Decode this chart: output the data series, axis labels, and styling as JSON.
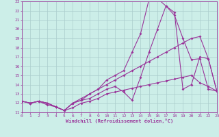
{
  "bg_color": "#cceee8",
  "grid_color": "#aacccc",
  "line_color": "#993399",
  "xlabel": "Windchill (Refroidissement éolien,°C)",
  "xmin": 0,
  "xmax": 23,
  "ymin": 11,
  "ymax": 23,
  "series": [
    {
      "x": [
        0,
        1,
        2,
        3,
        4,
        5,
        6,
        7,
        8,
        9,
        10,
        11,
        12,
        13,
        14,
        15,
        16,
        17,
        18,
        19,
        20,
        21,
        22,
        23
      ],
      "y": [
        12.2,
        12.0,
        12.2,
        11.8,
        11.6,
        11.2,
        11.5,
        12.0,
        12.2,
        12.5,
        13.0,
        13.2,
        13.4,
        13.6,
        13.8,
        14.0,
        14.2,
        14.4,
        14.6,
        14.8,
        15.0,
        14.2,
        13.8,
        13.3
      ]
    },
    {
      "x": [
        0,
        1,
        2,
        3,
        4,
        5,
        6,
        7,
        8,
        9,
        10,
        11,
        12,
        13,
        14,
        15,
        16,
        17,
        18,
        19,
        20,
        21,
        22,
        23
      ],
      "y": [
        12.2,
        12.0,
        12.2,
        12.0,
        11.6,
        11.2,
        12.0,
        12.5,
        13.0,
        13.5,
        14.0,
        14.5,
        15.0,
        15.5,
        16.0,
        16.5,
        17.0,
        17.5,
        18.0,
        18.5,
        19.0,
        19.2,
        16.8,
        13.3
      ]
    },
    {
      "x": [
        0,
        1,
        2,
        3,
        4,
        5,
        6,
        7,
        8,
        9,
        10,
        11,
        12,
        13,
        14,
        15,
        16,
        17,
        18,
        19,
        20,
        21,
        22,
        23
      ],
      "y": [
        12.2,
        12.0,
        12.2,
        12.0,
        11.6,
        11.2,
        12.0,
        12.3,
        13.0,
        13.5,
        14.5,
        15.0,
        15.5,
        17.5,
        19.5,
        23.2,
        23.3,
        22.5,
        21.5,
        19.0,
        16.7,
        16.8,
        13.5,
        13.3
      ]
    },
    {
      "x": [
        0,
        1,
        2,
        3,
        4,
        5,
        6,
        7,
        8,
        9,
        10,
        11,
        12,
        13,
        14,
        15,
        16,
        17,
        18,
        19,
        20,
        21,
        22,
        23
      ],
      "y": [
        12.2,
        12.0,
        12.2,
        12.0,
        11.6,
        11.2,
        12.0,
        12.3,
        12.5,
        13.0,
        13.5,
        13.8,
        13.2,
        12.3,
        14.8,
        17.5,
        20.0,
        22.5,
        21.8,
        13.5,
        14.0,
        17.0,
        16.8,
        13.3
      ]
    }
  ]
}
